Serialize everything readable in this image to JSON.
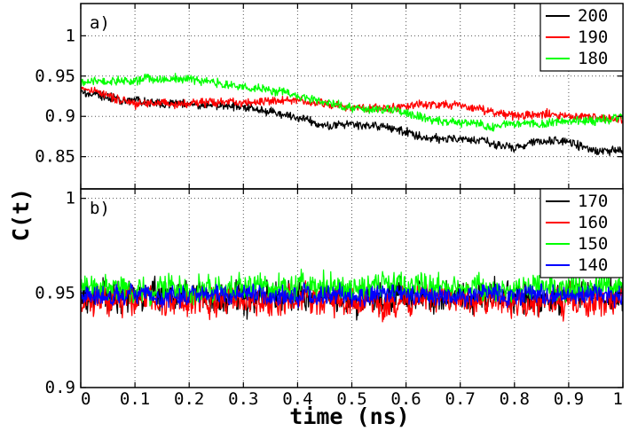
{
  "chart_data": [
    {
      "type": "line",
      "panel_label": "a)",
      "xlabel": "time (ns)",
      "ylabel": "C(t)",
      "xlim": [
        0,
        1
      ],
      "ylim": [
        0.81,
        1.04
      ],
      "x_ticks": [
        0,
        0.1,
        0.2,
        0.3,
        0.4,
        0.5,
        0.6,
        0.7,
        0.8,
        0.9,
        1
      ],
      "x_tick_labels": [
        "0",
        "0.1",
        "0.2",
        "0.3",
        "0.4",
        "0.5",
        "0.6",
        "0.7",
        "0.8",
        "0.9",
        "1"
      ],
      "y_ticks": [
        0.85,
        0.9,
        0.95,
        1
      ],
      "y_tick_labels": [
        "0.85",
        "0.9",
        "0.95",
        "1"
      ],
      "grid": true,
      "legend_position": "top-right",
      "series": [
        {
          "name": "200",
          "color": "#000000",
          "x": [
            0,
            0.1,
            0.2,
            0.3,
            0.35,
            0.4,
            0.45,
            0.5,
            0.55,
            0.6,
            0.65,
            0.7,
            0.75,
            0.8,
            0.85,
            0.9,
            0.95,
            1
          ],
          "values": [
            0.93,
            0.918,
            0.915,
            0.912,
            0.905,
            0.898,
            0.89,
            0.89,
            0.888,
            0.88,
            0.873,
            0.872,
            0.868,
            0.86,
            0.87,
            0.868,
            0.858,
            0.857
          ],
          "noise": 0.004
        },
        {
          "name": "190",
          "color": "#ff0000",
          "x": [
            0,
            0.1,
            0.2,
            0.3,
            0.35,
            0.4,
            0.45,
            0.5,
            0.55,
            0.6,
            0.65,
            0.7,
            0.75,
            0.8,
            0.85,
            0.9,
            0.95,
            1
          ],
          "values": [
            0.935,
            0.915,
            0.916,
            0.918,
            0.92,
            0.92,
            0.915,
            0.912,
            0.91,
            0.912,
            0.915,
            0.912,
            0.908,
            0.9,
            0.903,
            0.902,
            0.898,
            0.897
          ],
          "noise": 0.004
        },
        {
          "name": "180",
          "color": "#00ff00",
          "x": [
            0,
            0.1,
            0.2,
            0.3,
            0.35,
            0.4,
            0.45,
            0.5,
            0.55,
            0.6,
            0.65,
            0.7,
            0.75,
            0.8,
            0.85,
            0.9,
            0.95,
            1
          ],
          "values": [
            0.943,
            0.945,
            0.947,
            0.937,
            0.932,
            0.925,
            0.918,
            0.908,
            0.908,
            0.905,
            0.895,
            0.893,
            0.888,
            0.89,
            0.892,
            0.895,
            0.893,
            0.9
          ],
          "noise": 0.004
        }
      ]
    },
    {
      "type": "line",
      "panel_label": "b)",
      "xlabel": "time (ns)",
      "ylabel": "C(t)",
      "xlim": [
        0,
        1
      ],
      "ylim": [
        0.9,
        1.005
      ],
      "x_ticks": [
        0,
        0.1,
        0.2,
        0.3,
        0.4,
        0.5,
        0.6,
        0.7,
        0.8,
        0.9,
        1
      ],
      "x_tick_labels": [
        "0",
        "0.1",
        "0.2",
        "0.3",
        "0.4",
        "0.5",
        "0.6",
        "0.7",
        "0.8",
        "0.9",
        "1"
      ],
      "y_ticks": [
        0.9,
        0.95,
        1
      ],
      "y_tick_labels": [
        "0.9",
        "0.95",
        "1"
      ],
      "grid": true,
      "legend_position": "top-right",
      "series": [
        {
          "name": "170",
          "color": "#000000",
          "x": [
            0,
            1
          ],
          "values": [
            0.948,
            0.948
          ],
          "noise": 0.006
        },
        {
          "name": "160",
          "color": "#ff0000",
          "x": [
            0,
            1
          ],
          "values": [
            0.946,
            0.946
          ],
          "noise": 0.006
        },
        {
          "name": "150",
          "color": "#00ff00",
          "x": [
            0,
            1
          ],
          "values": [
            0.953,
            0.953
          ],
          "noise": 0.005
        },
        {
          "name": "140",
          "color": "#0000ff",
          "x": [
            0,
            1
          ],
          "values": [
            0.949,
            0.949
          ],
          "noise": 0.004
        }
      ]
    }
  ]
}
